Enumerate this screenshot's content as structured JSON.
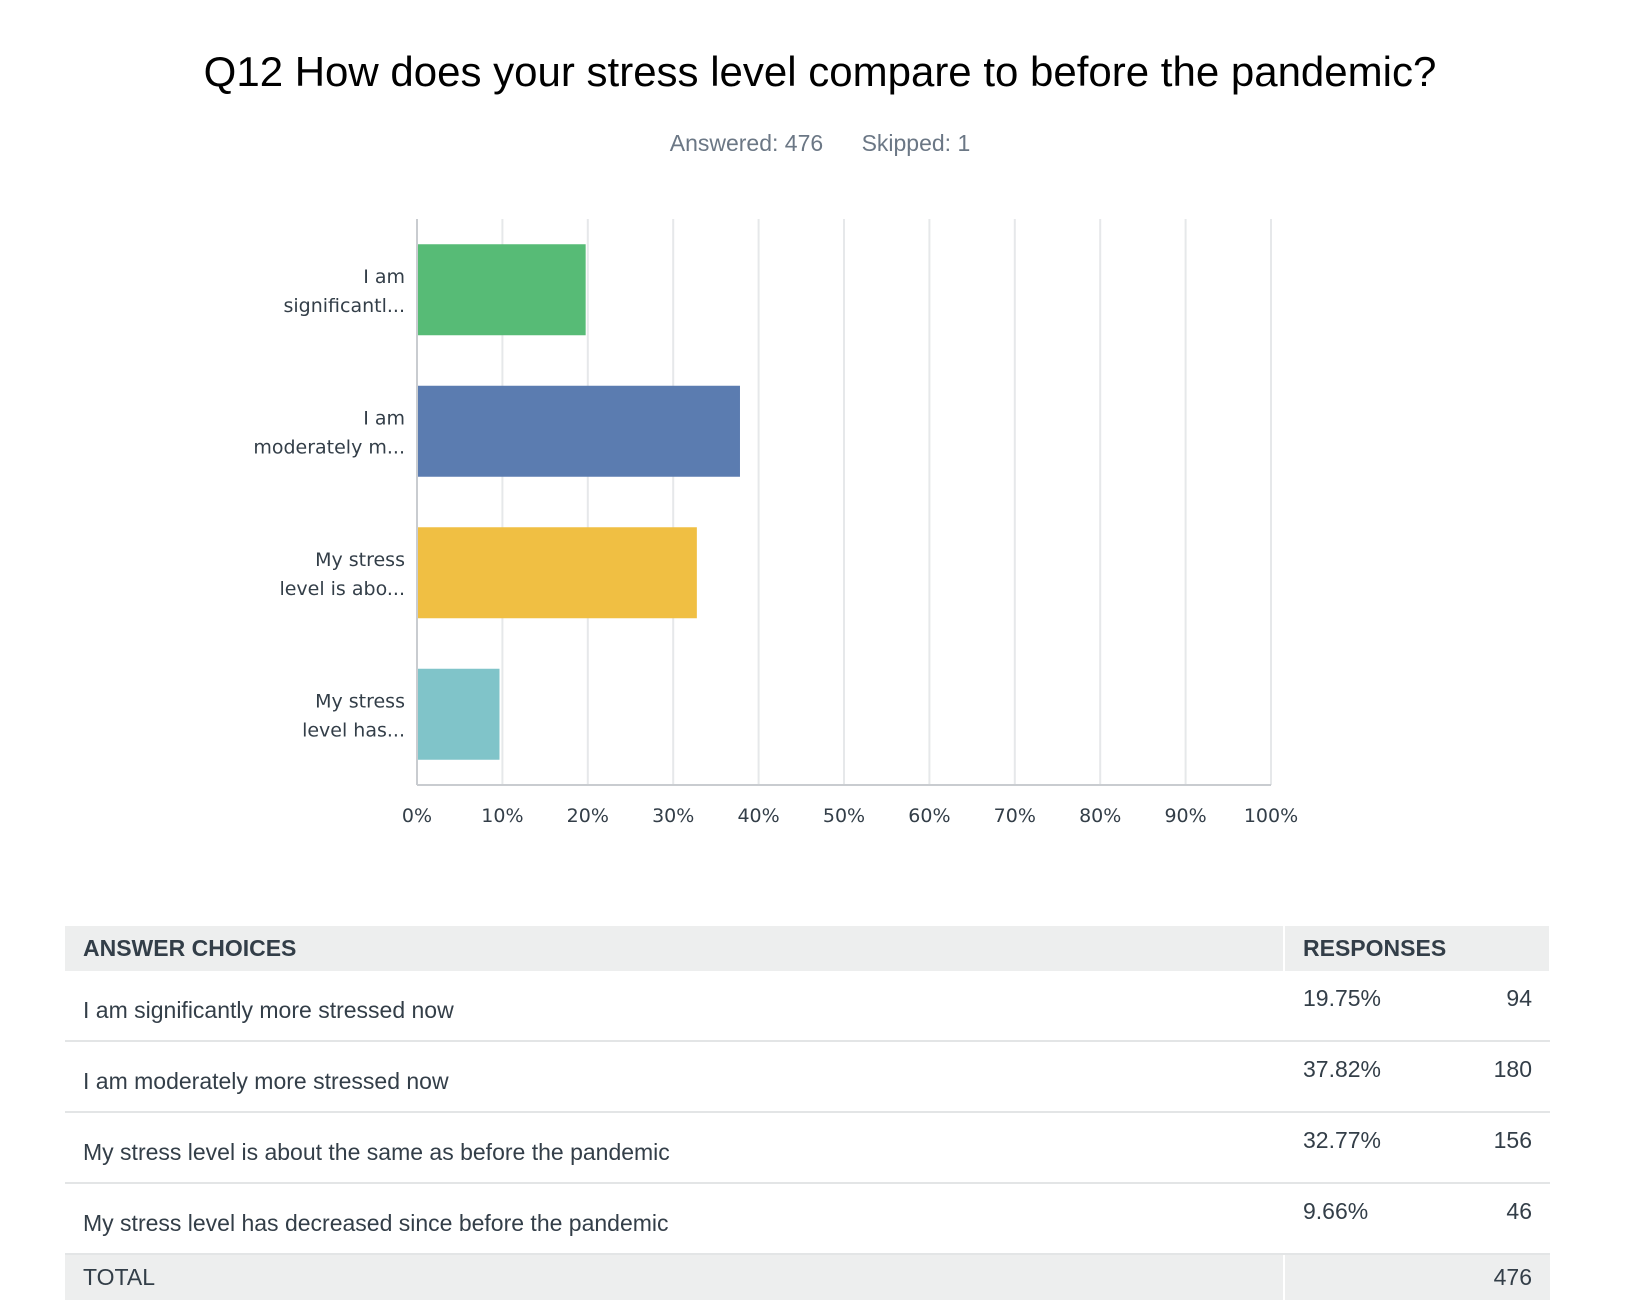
{
  "title": "Q12 How does your stress level compare to before the pandemic?",
  "answered_label": "Answered: 476",
  "skipped_label": "Skipped: 1",
  "chart_data": {
    "type": "bar",
    "orientation": "horizontal",
    "categories": [
      [
        "I am",
        "significantl..."
      ],
      [
        "I am",
        "moderately m..."
      ],
      [
        "My stress",
        "level is abo..."
      ],
      [
        "My stress",
        "level has..."
      ]
    ],
    "values": [
      19.75,
      37.82,
      32.77,
      9.66
    ],
    "colors": [
      "#57bb76",
      "#5b7cb0",
      "#f0bf43",
      "#80c4c9"
    ],
    "xlim": [
      0,
      100
    ],
    "x_ticks": [
      "0%",
      "10%",
      "20%",
      "30%",
      "40%",
      "50%",
      "60%",
      "70%",
      "80%",
      "90%",
      "100%"
    ],
    "grid": true
  },
  "table": {
    "headers": {
      "choices": "ANSWER CHOICES",
      "responses": "RESPONSES"
    },
    "rows": [
      {
        "choice": "I am significantly more stressed now",
        "percent": "19.75%",
        "count": "94"
      },
      {
        "choice": "I am moderately more stressed now",
        "percent": "37.82%",
        "count": "180"
      },
      {
        "choice": "My stress level is about the same as before the pandemic",
        "percent": "32.77%",
        "count": "156"
      },
      {
        "choice": "My stress level has decreased since before the pandemic",
        "percent": "9.66%",
        "count": "46"
      }
    ],
    "total_label": "TOTAL",
    "total_count": "476"
  }
}
